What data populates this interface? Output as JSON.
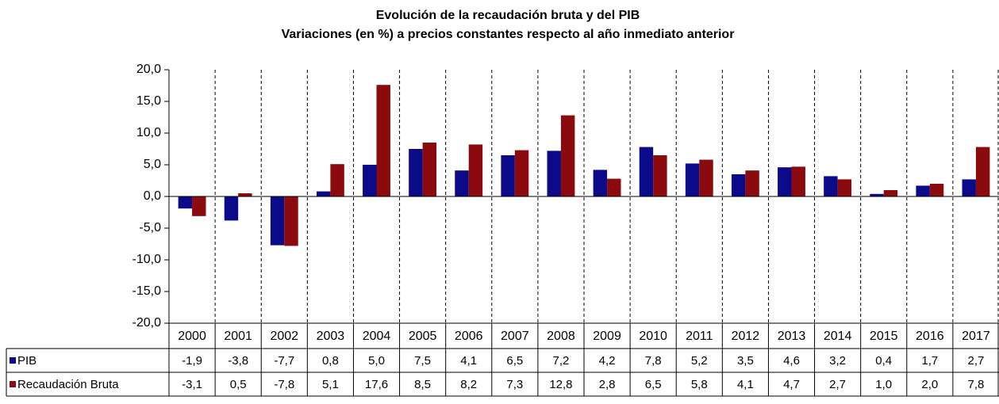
{
  "chart_data": {
    "type": "bar",
    "title": "Evolución de la recaudación bruta y del PIB",
    "subtitle": "Variaciones (en %) a precios constantes respecto al año inmediato anterior",
    "categories": [
      "2000",
      "2001",
      "2002",
      "2003",
      "2004",
      "2005",
      "2006",
      "2007",
      "2008",
      "2009",
      "2010",
      "2011",
      "2012",
      "2013",
      "2014",
      "2015",
      "2016",
      "2017"
    ],
    "series": [
      {
        "name": "PIB",
        "color": "#0b0b8a",
        "values": [
          -1.9,
          -3.8,
          -7.7,
          0.8,
          5.0,
          7.5,
          4.1,
          6.5,
          7.2,
          4.2,
          7.8,
          5.2,
          3.5,
          4.6,
          3.2,
          0.4,
          1.7,
          2.7
        ],
        "value_labels": [
          "-1,9",
          "-3,8",
          "-7,7",
          "0,8",
          "5,0",
          "7,5",
          "4,1",
          "6,5",
          "7,2",
          "4,2",
          "7,8",
          "5,2",
          "3,5",
          "4,6",
          "3,2",
          "0,4",
          "1,7",
          "2,7"
        ]
      },
      {
        "name": "Recaudación Bruta",
        "color": "#8b0a0e",
        "values": [
          -3.1,
          0.5,
          -7.8,
          5.1,
          17.6,
          8.5,
          8.2,
          7.3,
          12.8,
          2.8,
          6.5,
          5.8,
          4.1,
          4.7,
          2.7,
          1.0,
          2.0,
          7.8
        ],
        "value_labels": [
          "-3,1",
          "0,5",
          "-7,8",
          "5,1",
          "17,6",
          "8,5",
          "8,2",
          "7,3",
          "12,8",
          "2,8",
          "6,5",
          "5,8",
          "4,1",
          "4,7",
          "2,7",
          "1,0",
          "2,0",
          "7,8"
        ]
      }
    ],
    "ylim": [
      -20,
      20
    ],
    "yticks": [
      {
        "value": -20,
        "label": "-20,0"
      },
      {
        "value": -15,
        "label": "-15,0"
      },
      {
        "value": -10,
        "label": "-10,0"
      },
      {
        "value": -5,
        "label": "-5,0"
      },
      {
        "value": 0,
        "label": "0,0"
      },
      {
        "value": 5,
        "label": "5,0"
      },
      {
        "value": 10,
        "label": "10,0"
      },
      {
        "value": 15,
        "label": "15,0"
      },
      {
        "value": 20,
        "label": "20,0"
      }
    ],
    "grid": false
  }
}
